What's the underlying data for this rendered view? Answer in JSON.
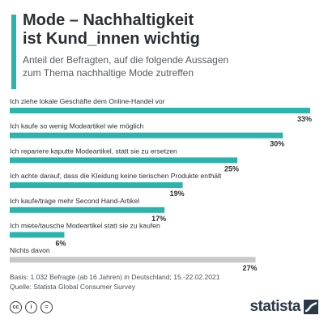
{
  "header": {
    "title_line1": "Mode – Nachhaltigkeit",
    "title_line2": "ist Kund_innen wichtig",
    "subtitle_line1": "Anteil der Befragten, auf die folgende Aussagen",
    "subtitle_line2": "zum Thema nachhaltige Mode zutreffen"
  },
  "chart_data": {
    "type": "bar",
    "orientation": "horizontal",
    "categories": [
      "Ich ziehe lokale Geschäfte dem Online-Handel vor",
      "Ich kaufe so wenig Modeartikel wie möglich",
      "Ich repariere kaputte Modeartikel, statt sie zu ersetzen",
      "Ich achte darauf, dass die Kleidung keine tierischen Produkte enthält",
      "Ich kaufe/trage mehr Second Hand-Artikel",
      "Ich miete/tausche Modeartikel statt sie zu kaufen",
      "Nichts davon"
    ],
    "values": [
      33,
      30,
      25,
      19,
      17,
      6,
      27
    ],
    "value_labels": [
      "33%",
      "30%",
      "25%",
      "19%",
      "17%",
      "6%",
      "27%"
    ],
    "bar_colors": [
      "#2bb3ad",
      "#2bb3ad",
      "#2bb3ad",
      "#2bb3ad",
      "#2bb3ad",
      "#2bb3ad",
      "#c8c8c8"
    ],
    "xlim": [
      0,
      33
    ],
    "grid": false,
    "legend": "none"
  },
  "footer": {
    "basis": "Basis: 1.032 Befragte (ab 16 Jahren) in Deutschland; 15.-22.02.2021",
    "source": "Quelle: Statista Global Consumer Survey"
  },
  "license_icons": [
    "cc-icon",
    "by-icon",
    "nd-icon"
  ],
  "brand": {
    "name": "statista",
    "color": "#2b3a4a"
  }
}
